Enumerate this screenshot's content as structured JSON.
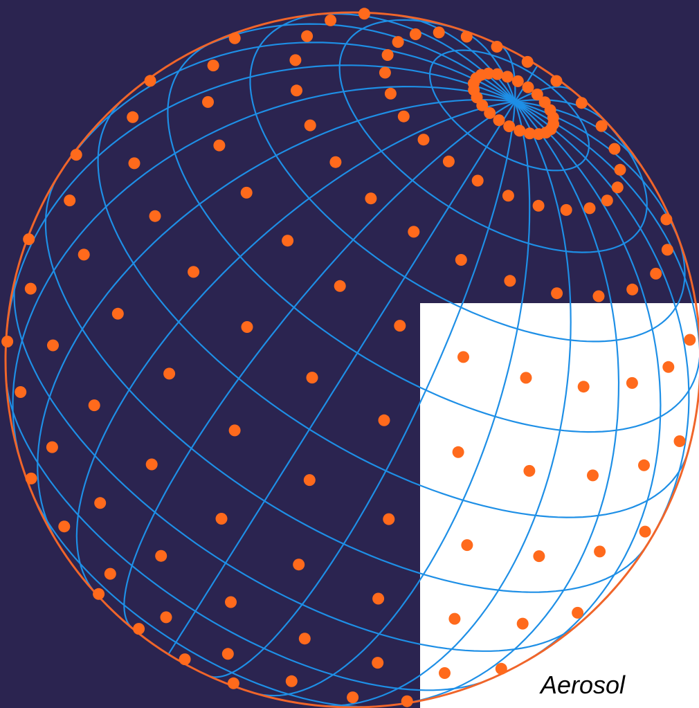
{
  "caption": "Aerosol",
  "colors": {
    "background": "#2b2450",
    "inset_panel": "#ffffff",
    "sphere_outline": "#f0652a",
    "grid_lines": "#1e8fe6",
    "particles": "#ff6a1c",
    "caption_text": "#000000"
  },
  "icons": {
    "sphere": "sphere-icon",
    "particle": "particle-dot-icon"
  }
}
